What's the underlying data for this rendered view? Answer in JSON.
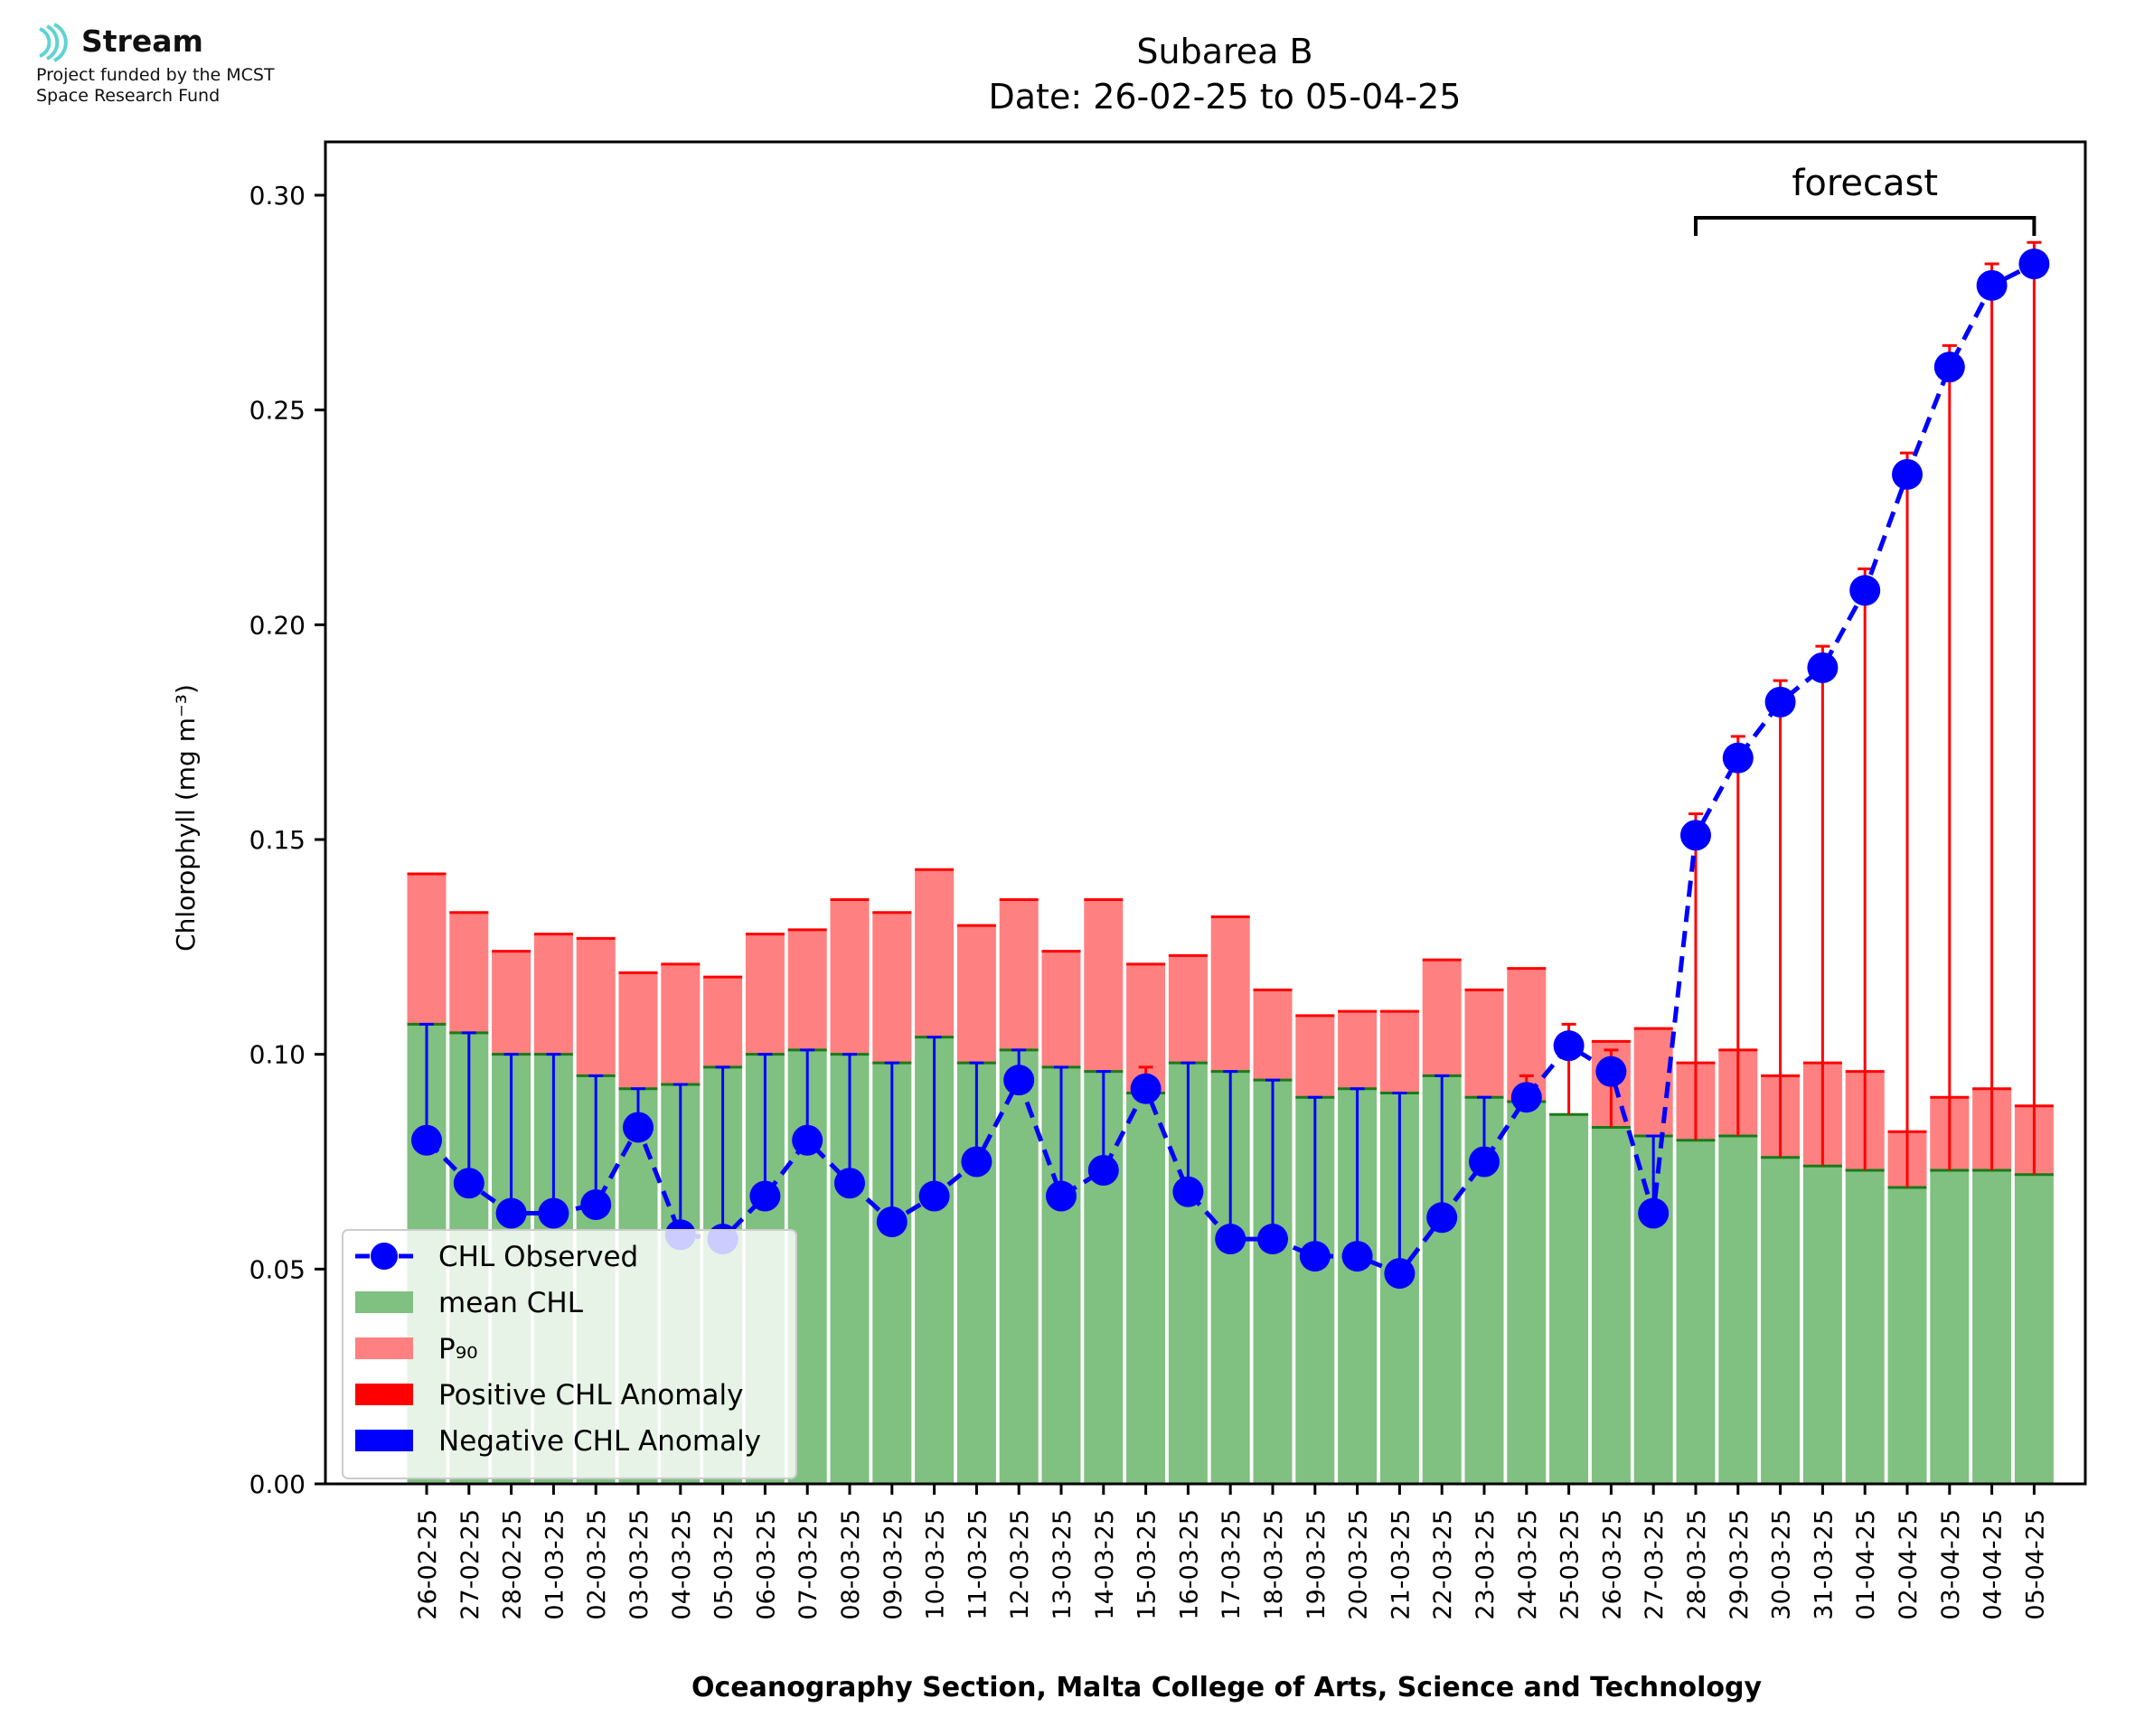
{
  "logo": {
    "name": "Stream",
    "line1": "Project funded by the MCST",
    "line2": "Space Research Fund"
  },
  "chart_data": {
    "type": "bar",
    "title": "Subarea B",
    "subtitle": "Date: 26-02-25 to 05-04-25",
    "xlabel": "Oceanography Section, Malta College of Arts, Science and Technology",
    "ylabel": "Chlorophyll (mg m⁻³)",
    "ylim": [
      0,
      0.312
    ],
    "yticks": [
      0.0,
      0.05,
      0.1,
      0.15,
      0.2,
      0.25,
      0.3
    ],
    "ytick_labels": [
      "0.00",
      "0.05",
      "0.10",
      "0.15",
      "0.20",
      "0.25",
      "0.30"
    ],
    "grid": false,
    "legend_position": "lower-left",
    "forecast_label": "forecast",
    "forecast_start": "28-03-25",
    "forecast_end": "05-04-25",
    "categories": [
      "26-02-25",
      "27-02-25",
      "28-02-25",
      "01-03-25",
      "02-03-25",
      "03-03-25",
      "04-03-25",
      "05-03-25",
      "06-03-25",
      "07-03-25",
      "08-03-25",
      "09-03-25",
      "10-03-25",
      "11-03-25",
      "12-03-25",
      "13-03-25",
      "14-03-25",
      "15-03-25",
      "16-03-25",
      "17-03-25",
      "18-03-25",
      "19-03-25",
      "20-03-25",
      "21-03-25",
      "22-03-25",
      "23-03-25",
      "24-03-25",
      "25-03-25",
      "26-03-25",
      "27-03-25",
      "28-03-25",
      "29-03-25",
      "30-03-25",
      "31-03-25",
      "01-04-25",
      "02-04-25",
      "03-04-25",
      "04-04-25",
      "05-04-25"
    ],
    "series": [
      {
        "name": "CHL Observed",
        "kind": "line",
        "color": "#0000ff",
        "values": [
          0.08,
          0.07,
          0.063,
          0.063,
          0.065,
          0.083,
          0.058,
          0.057,
          0.067,
          0.08,
          0.07,
          0.061,
          0.067,
          0.075,
          0.094,
          0.067,
          0.073,
          0.092,
          0.068,
          0.057,
          0.057,
          0.053,
          0.053,
          0.049,
          0.062,
          0.075,
          0.09,
          0.102,
          0.096,
          0.063,
          0.151,
          0.169,
          0.182,
          0.19,
          0.208,
          0.235,
          0.26,
          0.279,
          0.284
        ]
      },
      {
        "name": "mean CHL",
        "kind": "bar",
        "color": "#80c080",
        "values": [
          0.107,
          0.105,
          0.1,
          0.1,
          0.095,
          0.092,
          0.093,
          0.097,
          0.1,
          0.101,
          0.1,
          0.098,
          0.104,
          0.098,
          0.101,
          0.097,
          0.096,
          0.091,
          0.098,
          0.096,
          0.094,
          0.09,
          0.092,
          0.091,
          0.095,
          0.09,
          0.089,
          0.086,
          0.083,
          0.081,
          0.08,
          0.081,
          0.076,
          0.074,
          0.073,
          0.069,
          0.073,
          0.073,
          0.072
        ]
      },
      {
        "name": "P₉₀",
        "kind": "bar",
        "color": "#ff8080",
        "values": [
          0.142,
          0.133,
          0.124,
          0.128,
          0.127,
          0.119,
          0.121,
          0.118,
          0.128,
          0.129,
          0.136,
          0.133,
          0.143,
          0.13,
          0.136,
          0.124,
          0.136,
          0.121,
          0.123,
          0.132,
          0.115,
          0.109,
          0.11,
          0.11,
          0.122,
          0.115,
          0.12,
          0.086,
          0.103,
          0.106,
          0.098,
          0.101,
          0.095,
          0.098,
          0.096,
          0.082,
          0.09,
          0.092,
          0.088
        ]
      },
      {
        "name": "Positive CHL Anomaly",
        "kind": "swatch",
        "color": "#ff0000"
      },
      {
        "name": "Negative CHL Anomaly",
        "kind": "swatch",
        "color": "#0000ff"
      }
    ],
    "mean_line_color": "#1a7a1a",
    "p90_line_color": "#ff0000"
  }
}
